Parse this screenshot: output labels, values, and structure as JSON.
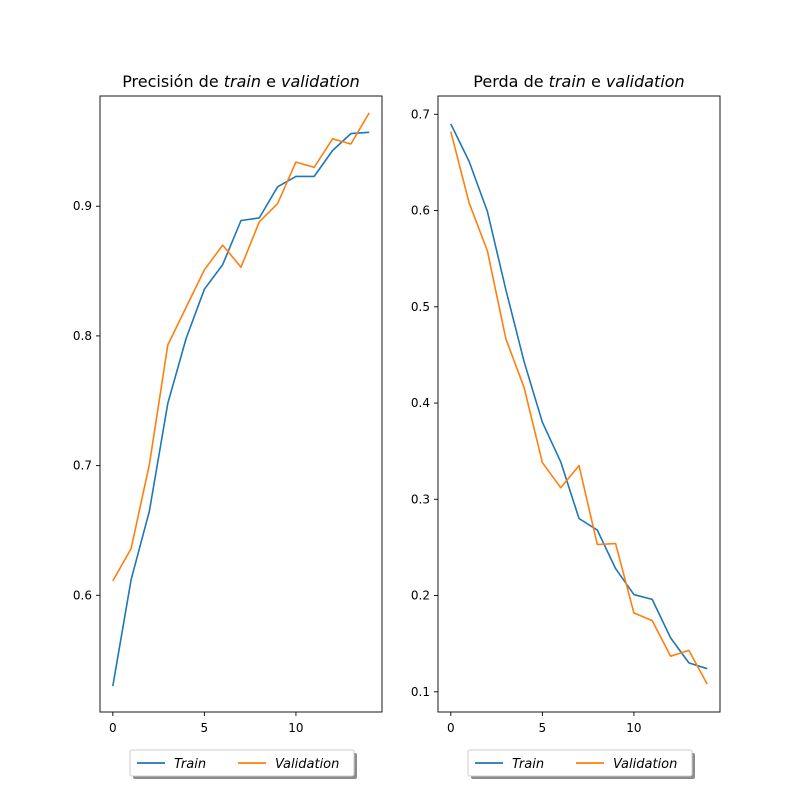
{
  "chart_data": [
    {
      "type": "line",
      "title_parts": [
        {
          "text": "Precisión de ",
          "italic": false
        },
        {
          "text": "train",
          "italic": true
        },
        {
          "text": " e ",
          "italic": false
        },
        {
          "text": "validation",
          "italic": true
        }
      ],
      "xlabel": "",
      "ylabel": "",
      "xlim": [
        -0.7,
        14.7
      ],
      "ylim": [
        0.51,
        0.985
      ],
      "xticks": [
        0,
        5,
        10
      ],
      "yticks": [
        0.6,
        0.7,
        0.8,
        0.9
      ],
      "ytick_labels": [
        "0.6",
        "0.7",
        "0.8",
        "0.9"
      ],
      "x": [
        0,
        1,
        2,
        3,
        4,
        5,
        6,
        7,
        8,
        9,
        10,
        11,
        12,
        13,
        14
      ],
      "series": [
        {
          "name": "Train",
          "color": "#1f77b4",
          "values": [
            0.53,
            0.612,
            0.665,
            0.748,
            0.798,
            0.836,
            0.855,
            0.889,
            0.891,
            0.915,
            0.923,
            0.923,
            0.943,
            0.956,
            0.957
          ]
        },
        {
          "name": "Validation",
          "color": "#ff7f0e",
          "values": [
            0.611,
            0.636,
            0.701,
            0.793,
            0.822,
            0.851,
            0.87,
            0.853,
            0.888,
            0.902,
            0.934,
            0.93,
            0.952,
            0.948,
            0.972
          ]
        }
      ],
      "grid": false,
      "legend": {
        "position": "bottom-center",
        "columns": 2
      }
    },
    {
      "type": "line",
      "title_parts": [
        {
          "text": "Perda de ",
          "italic": false
        },
        {
          "text": "train",
          "italic": true
        },
        {
          "text": " e ",
          "italic": false
        },
        {
          "text": "validation",
          "italic": true
        }
      ],
      "xlabel": "",
      "ylabel": "",
      "xlim": [
        -0.7,
        14.7
      ],
      "ylim": [
        0.079,
        0.719
      ],
      "xticks": [
        0,
        5,
        10
      ],
      "yticks": [
        0.1,
        0.2,
        0.3,
        0.4,
        0.5,
        0.6,
        0.7
      ],
      "ytick_labels": [
        "0.1",
        "0.2",
        "0.3",
        "0.4",
        "0.5",
        "0.6",
        "0.7"
      ],
      "x": [
        0,
        1,
        2,
        3,
        4,
        5,
        6,
        7,
        8,
        9,
        10,
        11,
        12,
        13,
        14
      ],
      "series": [
        {
          "name": "Train",
          "color": "#1f77b4",
          "values": [
            0.69,
            0.651,
            0.599,
            0.518,
            0.443,
            0.38,
            0.339,
            0.28,
            0.268,
            0.228,
            0.201,
            0.196,
            0.156,
            0.13,
            0.124
          ]
        },
        {
          "name": "Validation",
          "color": "#ff7f0e",
          "values": [
            0.682,
            0.608,
            0.558,
            0.467,
            0.416,
            0.338,
            0.312,
            0.335,
            0.253,
            0.254,
            0.182,
            0.174,
            0.137,
            0.143,
            0.108
          ]
        }
      ],
      "grid": false,
      "legend": {
        "position": "bottom-center",
        "columns": 2
      }
    }
  ]
}
